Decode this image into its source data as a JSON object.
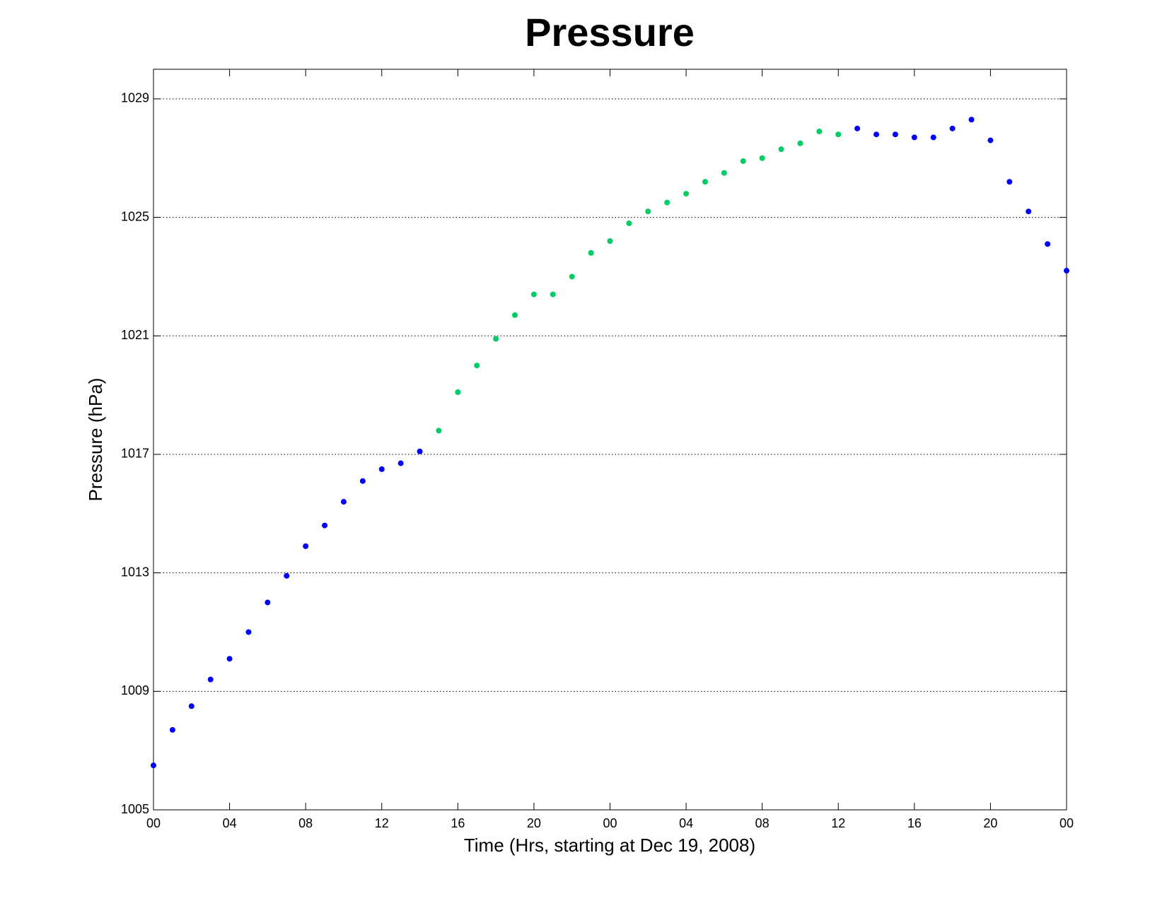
{
  "chart_data": {
    "type": "scatter",
    "title": "Pressure",
    "xlabel": "Time (Hrs, starting at Dec 19, 2008)",
    "ylabel": "Pressure (hPa)",
    "series": [
      {
        "color": "#0000ff",
        "x": [
          0,
          1,
          2,
          3,
          4,
          5,
          6,
          7,
          8,
          9,
          10,
          11,
          12,
          13,
          14,
          37,
          38,
          39,
          40,
          41,
          42,
          43,
          44,
          45,
          46,
          47,
          48
        ],
        "values": [
          1006.5,
          1007.7,
          1008.5,
          1009.4,
          1010.1,
          1011.0,
          1012.0,
          1012.9,
          1013.9,
          1014.6,
          1015.4,
          1016.1,
          1016.5,
          1016.7,
          1017.1,
          1028.0,
          1027.8,
          1027.8,
          1027.7,
          1027.7,
          1028.0,
          1028.3,
          1027.6,
          1026.2,
          1025.2,
          1024.1,
          1023.2
        ]
      },
      {
        "color": "#00cc66",
        "x": [
          15,
          16,
          17,
          18,
          19,
          20,
          21,
          22,
          23,
          24,
          25,
          26,
          27,
          28,
          29,
          30,
          31,
          32,
          33,
          34,
          35,
          36
        ],
        "values": [
          1017.8,
          1019.1,
          1020.0,
          1020.9,
          1021.7,
          1022.4,
          1022.4,
          1023.0,
          1023.8,
          1024.2,
          1024.8,
          1025.2,
          1025.5,
          1025.8,
          1026.2,
          1026.5,
          1026.9,
          1027.0,
          1027.3,
          1027.5,
          1027.9,
          1027.8
        ]
      }
    ],
    "xlim": [
      0,
      48
    ],
    "xticks": [
      {
        "value": 0,
        "label": "00"
      },
      {
        "value": 4,
        "label": "04"
      },
      {
        "value": 8,
        "label": "08"
      },
      {
        "value": 12,
        "label": "12"
      },
      {
        "value": 16,
        "label": "16"
      },
      {
        "value": 20,
        "label": "20"
      },
      {
        "value": 24,
        "label": "00"
      },
      {
        "value": 28,
        "label": "04"
      },
      {
        "value": 32,
        "label": "08"
      },
      {
        "value": 36,
        "label": "12"
      },
      {
        "value": 40,
        "label": "16"
      },
      {
        "value": 44,
        "label": "20"
      },
      {
        "value": 48,
        "label": "00"
      }
    ],
    "ylim": [
      1005,
      1030
    ],
    "yticks": [
      1005,
      1009,
      1013,
      1017,
      1021,
      1025,
      1029
    ],
    "grid": true
  }
}
